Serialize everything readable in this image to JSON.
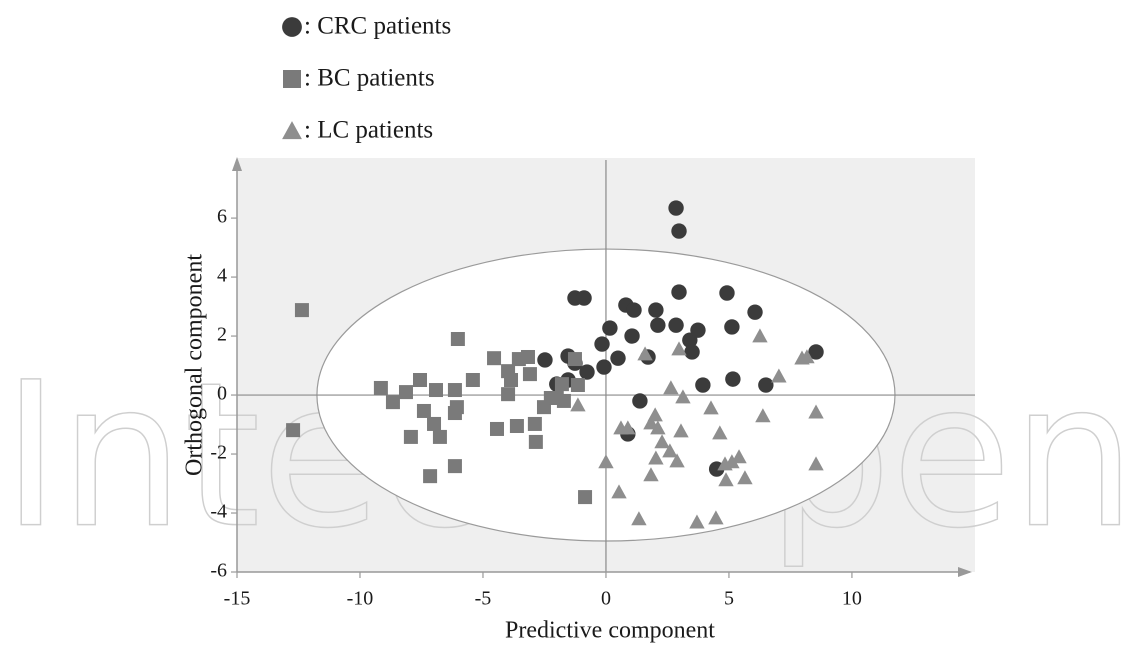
{
  "chart_data": {
    "type": "scatter",
    "x_label": "Predictive component",
    "y_label": "Orthogonal component",
    "watermark": "IntechOpen",
    "xlim": [
      -15,
      14.8
    ],
    "ylim": [
      -6,
      7.8
    ],
    "xticks": [
      -15,
      -10,
      -5,
      0,
      5,
      10
    ],
    "yticks": [
      -6,
      -4,
      -2,
      0,
      2,
      4,
      6
    ],
    "ellipse": {
      "cx": 0,
      "cy": 0,
      "rx": 11.75,
      "ry": 4.95
    },
    "series": [
      {
        "name": ": CRC patients",
        "color": "#3b3b3b",
        "marker": "circle",
        "x": [
          8.54,
          6.5,
          6.06,
          5.16,
          5.12,
          4.92,
          3.94,
          2.85,
          2.97,
          2.97,
          2.85,
          3.41,
          3.74,
          3.5,
          4.5,
          2.03,
          2.11,
          0.81,
          1.14,
          1.06,
          1.71,
          0.16,
          0.49,
          -0.16,
          -0.08,
          -0.77,
          -1.26,
          -0.89,
          -1.54,
          -1.26,
          -2.0,
          -2.48,
          -1.54,
          1.38,
          0.89
        ],
        "values": [
          1.46,
          0.34,
          2.81,
          0.54,
          2.31,
          3.46,
          0.34,
          6.34,
          5.56,
          3.49,
          2.37,
          1.86,
          2.2,
          1.46,
          -2.51,
          2.88,
          2.37,
          3.05,
          2.88,
          2.0,
          1.29,
          2.27,
          1.25,
          1.73,
          0.95,
          0.78,
          3.29,
          3.29,
          1.32,
          1.08,
          0.37,
          1.19,
          0.51,
          -0.2,
          -1.32
        ]
      },
      {
        "name": ": BC patients",
        "color": "#7a7a7a",
        "marker": "square",
        "x": [
          -12.36,
          -12.72,
          -9.15,
          -8.66,
          -8.13,
          -7.56,
          -7.4,
          -7.93,
          -6.91,
          -6.99,
          -6.75,
          -7.15,
          -6.02,
          -6.14,
          -6.06,
          -6.14,
          -6.14,
          -5.41,
          -4.55,
          -4.43,
          -3.98,
          -3.86,
          -3.98,
          -3.54,
          -3.62,
          -3.17,
          -3.09,
          -2.89,
          -2.85,
          -2.52,
          -2.24,
          -2.0,
          -1.79,
          -1.71,
          -1.26,
          -1.14,
          -0.85
        ],
        "values": [
          2.88,
          -1.19,
          0.24,
          -0.24,
          0.1,
          0.51,
          -0.54,
          -1.42,
          0.17,
          -0.98,
          -1.42,
          -2.75,
          1.9,
          0.17,
          -0.41,
          -0.61,
          -2.41,
          0.51,
          1.25,
          -1.15,
          0.81,
          0.51,
          0.03,
          1.22,
          -1.05,
          1.29,
          0.71,
          -0.98,
          -1.59,
          -0.41,
          -0.1,
          -0.1,
          0.37,
          -0.2,
          1.22,
          0.34,
          -3.46
        ]
      },
      {
        "name": ": LC patients",
        "color": "#8e8e8e",
        "marker": "triangle",
        "x": [
          -1.14,
          0,
          0.53,
          0.61,
          0.89,
          1.34,
          1.59,
          1.83,
          2.0,
          2.11,
          2.28,
          2.03,
          1.83,
          2.64,
          2.6,
          2.89,
          3.05,
          3.13,
          2.97,
          3.7,
          4.27,
          4.63,
          4.47,
          4.88,
          5.12,
          5.41,
          5.65,
          4.84,
          6.26,
          6.38,
          7.03,
          7.97,
          8.17,
          8.54,
          8.54
        ],
        "values": [
          -0.34,
          -2.27,
          -3.29,
          -1.12,
          -1.12,
          -4.2,
          1.39,
          -0.95,
          -0.68,
          -1.12,
          -1.59,
          -2.14,
          -2.71,
          0.24,
          -1.9,
          -2.24,
          -1.22,
          -0.07,
          1.56,
          -4.31,
          -0.44,
          -1.29,
          -4.17,
          -2.88,
          -2.27,
          -2.1,
          -2.81,
          -2.34,
          2.0,
          -0.71,
          0.64,
          1.25,
          1.29,
          -0.58,
          -2.34
        ]
      }
    ]
  }
}
